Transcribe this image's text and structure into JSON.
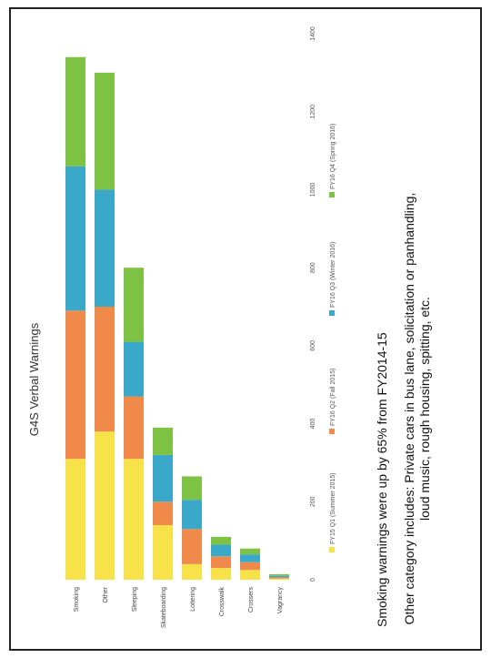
{
  "chart_data": {
    "type": "bar",
    "orientation": "horizontal-stacked",
    "title": "G4S Verbal Warnings",
    "categories": [
      "Smoking",
      "Other",
      "Sleeping",
      "Skateboarding",
      "Loitering",
      "Crosswalk",
      "Crossers",
      "Vagrancy"
    ],
    "series": [
      {
        "name": "FY15 Q1 (Summer 2015)",
        "color": "#f7e24a",
        "values": [
          310,
          380,
          310,
          140,
          40,
          30,
          25,
          3
        ]
      },
      {
        "name": "FY16 Q2 (Fall 2015)",
        "color": "#f08a4b",
        "values": [
          380,
          320,
          160,
          60,
          90,
          30,
          20,
          3
        ]
      },
      {
        "name": "FY16 Q3 (Winter 2016)",
        "color": "#3aa8c8",
        "values": [
          370,
          300,
          140,
          120,
          75,
          30,
          20,
          4
        ]
      },
      {
        "name": "FY16 Q4 (Spring 2016)",
        "color": "#7dc242",
        "values": [
          280,
          300,
          190,
          70,
          60,
          20,
          15,
          4
        ]
      }
    ],
    "xlim": [
      0,
      1400
    ],
    "xticks": [
      "0",
      "200",
      "400",
      "600",
      "800",
      "1000",
      "1200",
      "1400"
    ],
    "legend": "bottom"
  },
  "notes": {
    "line1": "Smoking warnings were up by 65% from FY2014-15",
    "line2": "Other category includes: Private cars in bus lane, solicitation or panhandling, loud music, rough housing, spitting, etc."
  }
}
